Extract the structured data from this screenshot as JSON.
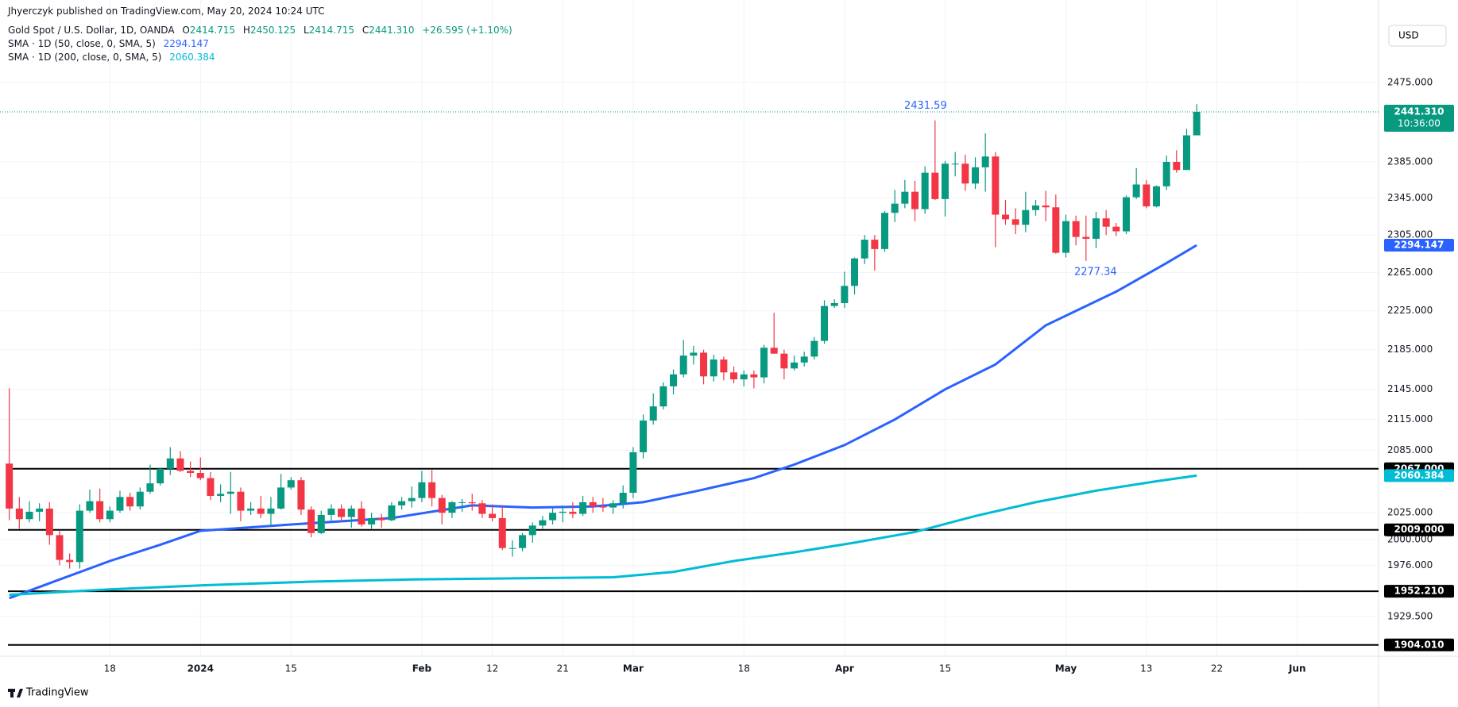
{
  "header": {
    "published": "Jhyerczyk published on TradingView.com, May 20, 2024 10:24 UTC"
  },
  "footer": {
    "brand": "TradingView"
  },
  "currency_button": "USD",
  "chart_data": {
    "type": "candlestick",
    "title": "Gold Spot / U.S. Dollar, 1D, OANDA",
    "legend_labels": {
      "open": "O",
      "high": "H",
      "low": "L",
      "close": "C"
    },
    "change_label": "+26.595 (+1.10%)",
    "close_label": "2441.310",
    "countdown": "10:36:00",
    "up_color": "#089981",
    "down_color": "#f23645",
    "open": [
      2072,
      2029,
      2019,
      2026,
      2029,
      2004,
      1981,
      1979,
      2027,
      2036,
      2019,
      2027,
      2040,
      2031,
      2045,
      2053,
      2067,
      2077,
      2065,
      2063,
      2058,
      2041,
      2043,
      2045,
      2027,
      2029,
      2024,
      2029,
      2049,
      2056,
      2028,
      2006,
      2023,
      2029,
      2021,
      2029,
      2014,
      2020,
      2018,
      2032,
      2036,
      2039,
      2054,
      2039,
      2025,
      2035,
      2035,
      2034,
      2024,
      2020,
      1992,
      1992,
      2004,
      2013,
      2018,
      2025,
      2026,
      2024,
      2035,
      2031,
      2030,
      2034,
      2044,
      2083,
      2114,
      2128,
      2148,
      2160,
      2179,
      2182,
      2158,
      2175,
      2162,
      2155,
      2160,
      2157,
      2187,
      2181,
      2166,
      2172,
      2178,
      2194,
      2230,
      2233,
      2251,
      2280,
      2300,
      2290,
      2329,
      2339,
      2352,
      2333,
      2373,
      2344,
      2383,
      2383,
      2361,
      2379,
      2391,
      2327,
      2322,
      2316,
      2332,
      2337,
      2335,
      2286,
      2320,
      2303,
      2301,
      2323,
      2314,
      2309,
      2346,
      2360,
      2336,
      2358,
      2385,
      2376,
      2414.715
    ],
    "high": [
      2146,
      2040,
      2036,
      2034,
      2035,
      2008,
      1987,
      2033,
      2047,
      2048,
      2031,
      2046,
      2044,
      2049,
      2071,
      2068,
      2088,
      2084,
      2074,
      2078,
      2064,
      2052,
      2064,
      2049,
      2035,
      2041,
      2040,
      2062,
      2059,
      2059,
      2031,
      2027,
      2033,
      2033,
      2032,
      2036,
      2025,
      2024,
      2035,
      2040,
      2050,
      2065,
      2066,
      2042,
      2036,
      2038,
      2043,
      2037,
      2033,
      2032,
      1999,
      2006,
      2016,
      2022,
      2031,
      2032,
      2035,
      2041,
      2040,
      2039,
      2037,
      2051,
      2088,
      2120,
      2141,
      2152,
      2165,
      2195,
      2189,
      2185,
      2180,
      2178,
      2168,
      2164,
      2164,
      2190,
      2223,
      2185,
      2179,
      2183,
      2198,
      2236,
      2237,
      2266,
      2281,
      2305,
      2305,
      2331,
      2354,
      2365,
      2364,
      2380,
      2431.59,
      2386,
      2396,
      2393,
      2390,
      2417,
      2396,
      2343,
      2334,
      2352,
      2343,
      2353,
      2349,
      2327,
      2326,
      2326,
      2330,
      2332,
      2318,
      2348,
      2378,
      2365,
      2359,
      2392,
      2398,
      2422,
      2450.125
    ],
    "low": [
      2018,
      2010,
      2016,
      2017,
      1995,
      1976,
      1973,
      1973,
      2025,
      2016,
      2016,
      2025,
      2027,
      2028,
      2043,
      2051,
      2061,
      2064,
      2059,
      2056,
      2037,
      2035,
      2024,
      2017,
      2023,
      2020,
      2013,
      2028,
      2047,
      2023,
      2002,
      2005,
      2017,
      2016,
      2011,
      2012,
      2010,
      2011,
      2017,
      2028,
      2030,
      2035,
      2031,
      2014,
      2020,
      2026,
      2027,
      2020,
      2017,
      1990,
      1984,
      1989,
      1997,
      2010,
      2014,
      2016,
      2020,
      2022,
      2025,
      2026,
      2024,
      2029,
      2039,
      2077,
      2110,
      2125,
      2140,
      2157,
      2170,
      2150,
      2153,
      2154,
      2151,
      2148,
      2146,
      2151,
      2181,
      2155,
      2164,
      2168,
      2175,
      2191,
      2228,
      2228,
      2242,
      2274,
      2267,
      2287,
      2319,
      2334,
      2320,
      2328,
      2343,
      2325,
      2369,
      2353,
      2355,
      2352,
      2292,
      2316,
      2306,
      2308,
      2326,
      2320,
      2285,
      2281,
      2294,
      2277.34,
      2291,
      2305,
      2304,
      2306,
      2344,
      2334,
      2335,
      2354,
      2373,
      2376,
      2414.715
    ],
    "close": [
      2029,
      2019,
      2026,
      2029,
      2004,
      1981,
      1979,
      2027,
      2036,
      2019,
      2027,
      2040,
      2031,
      2045,
      2053,
      2067,
      2077,
      2065,
      2063,
      2058,
      2041,
      2043,
      2045,
      2027,
      2029,
      2024,
      2029,
      2049,
      2056,
      2028,
      2006,
      2023,
      2029,
      2021,
      2029,
      2014,
      2020,
      2018,
      2032,
      2036,
      2039,
      2054,
      2039,
      2025,
      2035,
      2035,
      2034,
      2024,
      2020,
      1992,
      1992,
      2004,
      2013,
      2018,
      2025,
      2026,
      2024,
      2035,
      2031,
      2030,
      2034,
      2044,
      2083,
      2114,
      2128,
      2148,
      2160,
      2179,
      2182,
      2158,
      2175,
      2162,
      2155,
      2160,
      2157,
      2187,
      2181,
      2166,
      2172,
      2178,
      2194,
      2230,
      2233,
      2251,
      2280,
      2300,
      2290,
      2329,
      2339,
      2352,
      2333,
      2373,
      2344,
      2383,
      2383,
      2361,
      2379,
      2391,
      2327,
      2322,
      2316,
      2332,
      2337,
      2335,
      2286,
      2320,
      2303,
      2301,
      2323,
      2314,
      2309,
      2346,
      2360,
      2336,
      2358,
      2385,
      2376,
      2414.715,
      2441.31
    ],
    "series": [
      {
        "name": "SMA · 1D (50, close, 0, SMA, 5)",
        "color": "#2962ff",
        "x": [
          0,
          5,
          10,
          15,
          19,
          28,
          38,
          46,
          52,
          58,
          63,
          68,
          74,
          78,
          83,
          88,
          93,
          98,
          103,
          110,
          115,
          118
        ],
        "values": [
          1946,
          1963,
          1980,
          1995,
          2008,
          2014,
          2020,
          2032,
          2030,
          2031,
          2035,
          2045,
          2058,
          2071,
          2090,
          2115,
          2145,
          2170,
          2210,
          2245,
          2275,
          2294.147
        ]
      },
      {
        "name": "SMA · 1D (200, close, 0, SMA, 5)",
        "color": "#00bcd4",
        "x": [
          0,
          10,
          20,
          30,
          40,
          50,
          60,
          66,
          72,
          78,
          84,
          90,
          96,
          102,
          108,
          114,
          118
        ],
        "values": [
          1949,
          1954,
          1958,
          1961,
          1963,
          1964,
          1965,
          1970,
          1980,
          1988,
          1997,
          2007,
          2022,
          2035,
          2046,
          2055,
          2060.384
        ]
      }
    ],
    "levels": [
      {
        "value": 2067,
        "label": "2067.000"
      },
      {
        "value": 2009,
        "label": "2009.000"
      },
      {
        "value": 1952.21,
        "label": "1952.210"
      },
      {
        "value": 1904.01,
        "label": "1904.010"
      }
    ],
    "annotations": {
      "high": 2431.59,
      "low": 2277.34
    },
    "xlim": [
      -0.92,
      136.07
    ],
    "xticks": [
      {
        "value": 10,
        "label": "18"
      },
      {
        "value": 19,
        "label": "2024"
      },
      {
        "value": 28,
        "label": "15"
      },
      {
        "value": 41,
        "label": "Feb"
      },
      {
        "value": 48,
        "label": "12"
      },
      {
        "value": 55,
        "label": "21"
      },
      {
        "value": 62,
        "label": "Mar"
      },
      {
        "value": 73,
        "label": "18"
      },
      {
        "value": 83,
        "label": "Apr"
      },
      {
        "value": 93,
        "label": "15"
      },
      {
        "value": 105,
        "label": "May"
      },
      {
        "value": 113,
        "label": "13"
      },
      {
        "value": 120,
        "label": "22"
      },
      {
        "value": 128,
        "label": "Jun"
      }
    ],
    "ylim": [
      1894,
      2572
    ],
    "yticks": [
      {
        "value": 2475,
        "label": "2475.000"
      },
      {
        "value": 2385,
        "label": "2385.000"
      },
      {
        "value": 2345,
        "label": "2345.000"
      },
      {
        "value": 2305,
        "label": "2305.000"
      },
      {
        "value": 2265,
        "label": "2265.000"
      },
      {
        "value": 2225,
        "label": "2225.000"
      },
      {
        "value": 2185,
        "label": "2185.000"
      },
      {
        "value": 2145,
        "label": "2145.000"
      },
      {
        "value": 2115,
        "label": "2115.000"
      },
      {
        "value": 2085,
        "label": "2085.000"
      },
      {
        "value": 2025,
        "label": "2025.000"
      },
      {
        "value": 2000,
        "label": "2000.000"
      },
      {
        "value": 1976,
        "label": "1976.000"
      },
      {
        "value": 1929.5,
        "label": "1929.500"
      }
    ],
    "log_scale": true,
    "grid": true
  }
}
